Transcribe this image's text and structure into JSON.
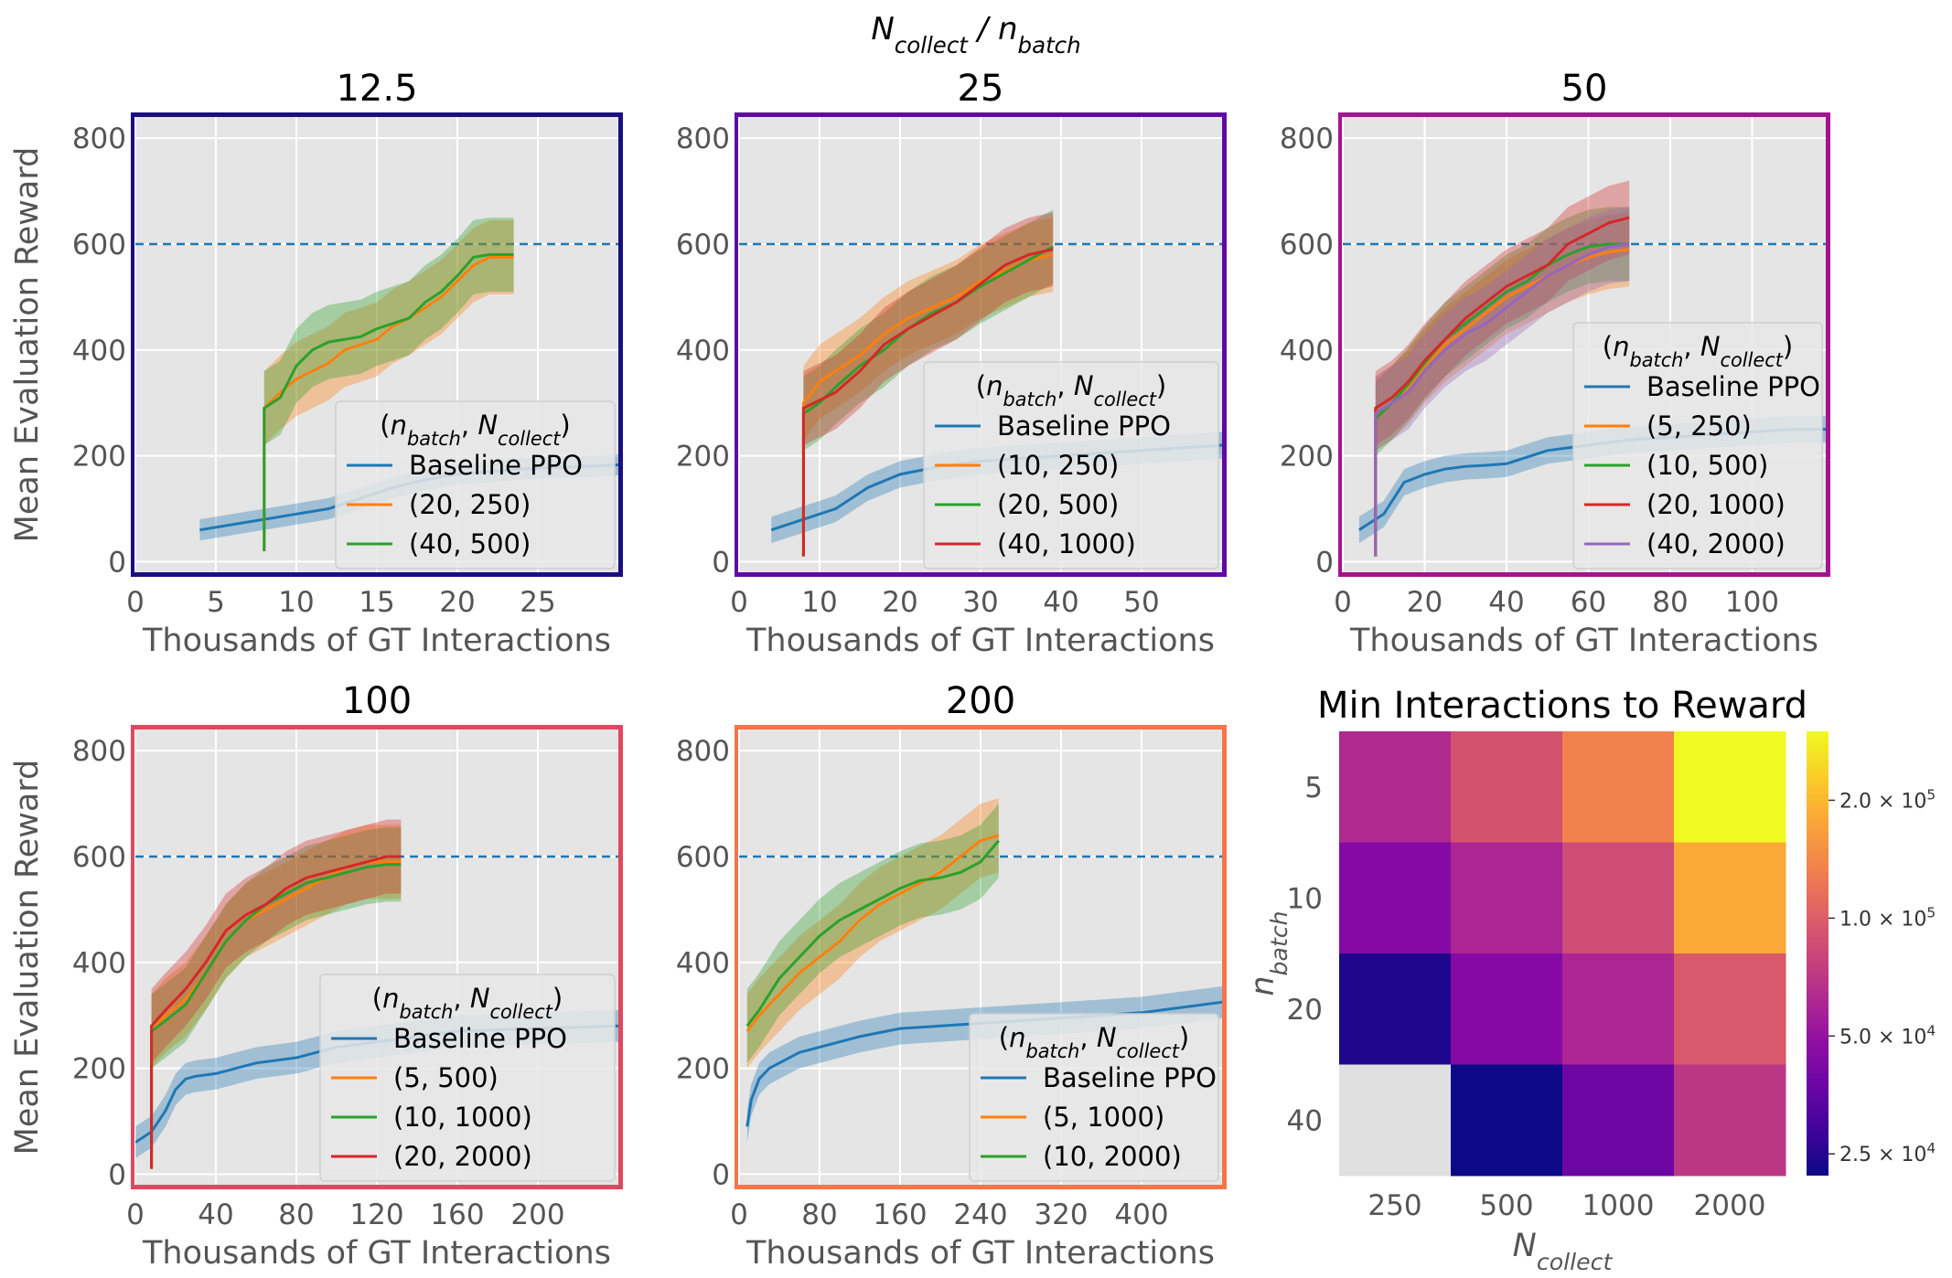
{
  "suptitle": "N_collect / n_batch",
  "chart_data": [
    {
      "type": "line",
      "title": "12.5",
      "frame_color": "#1b0f80",
      "xlabel": "Thousands of GT Interactions",
      "ylabel": "Mean Evaluation Reward",
      "xlim": [
        0,
        30
      ],
      "ylim": [
        -20,
        840
      ],
      "xticks": [
        0,
        5,
        10,
        15,
        20,
        25
      ],
      "yticks": [
        0,
        200,
        400,
        600,
        800
      ],
      "threshold": 600,
      "legend_title": "(n_batch, N_collect)",
      "legend_position": "lower-right",
      "series": [
        {
          "name": "Baseline PPO",
          "color": "#1f77b4",
          "x": [
            4,
            6,
            8,
            10,
            12,
            14,
            16,
            18,
            20,
            22,
            24,
            26,
            28,
            30
          ],
          "y": [
            60,
            70,
            80,
            90,
            100,
            120,
            140,
            155,
            165,
            170,
            175,
            178,
            180,
            183
          ],
          "band": 20
        },
        {
          "name": "(20, 250)",
          "color": "#ff7f0e",
          "x": [
            8,
            8,
            9,
            10,
            11,
            12,
            13,
            14,
            15,
            16,
            17,
            18,
            19,
            20,
            21,
            22,
            23.5
          ],
          "y": [
            20,
            290,
            320,
            345,
            360,
            375,
            400,
            410,
            420,
            445,
            460,
            480,
            500,
            530,
            560,
            575,
            575
          ],
          "band": 70
        },
        {
          "name": "(40, 500)",
          "color": "#2ca02c",
          "x": [
            8,
            8,
            9,
            10,
            11,
            12,
            13,
            14,
            15,
            16,
            17,
            18,
            19,
            20,
            21,
            22,
            23.5
          ],
          "y": [
            20,
            290,
            310,
            370,
            400,
            415,
            420,
            425,
            440,
            450,
            460,
            490,
            510,
            540,
            575,
            580,
            580
          ],
          "band": 70
        }
      ]
    },
    {
      "type": "line",
      "title": "25",
      "frame_color": "#5f0aa5",
      "xlabel": "Thousands of GT Interactions",
      "ylabel": "",
      "xlim": [
        0,
        60
      ],
      "ylim": [
        -20,
        840
      ],
      "xticks": [
        0,
        10,
        20,
        30,
        40,
        50
      ],
      "yticks": [
        0,
        200,
        400,
        600,
        800
      ],
      "threshold": 600,
      "legend_title": "(n_batch, N_collect)",
      "legend_position": "lower-right",
      "series": [
        {
          "name": "Baseline PPO",
          "color": "#1f77b4",
          "x": [
            4,
            8,
            12,
            16,
            20,
            25,
            30,
            35,
            40,
            45,
            50,
            55,
            60
          ],
          "y": [
            60,
            80,
            100,
            140,
            165,
            180,
            190,
            195,
            200,
            205,
            210,
            215,
            220
          ],
          "band": 25
        },
        {
          "name": "(10, 250)",
          "color": "#ff7f0e",
          "x": [
            8,
            8,
            10,
            12,
            15,
            18,
            21,
            24,
            27,
            30,
            33,
            36,
            39
          ],
          "y": [
            10,
            300,
            340,
            360,
            390,
            430,
            460,
            480,
            500,
            530,
            550,
            570,
            580
          ],
          "band": 70
        },
        {
          "name": "(20, 500)",
          "color": "#2ca02c",
          "x": [
            8,
            8,
            10,
            12,
            15,
            18,
            21,
            24,
            27,
            30,
            33,
            36,
            39
          ],
          "y": [
            10,
            280,
            300,
            330,
            370,
            400,
            440,
            470,
            490,
            520,
            545,
            570,
            595
          ],
          "band": 70
        },
        {
          "name": "(40, 1000)",
          "color": "#d62728",
          "x": [
            8,
            8,
            10,
            12,
            15,
            18,
            21,
            24,
            27,
            30,
            33,
            36,
            39
          ],
          "y": [
            10,
            290,
            305,
            320,
            360,
            410,
            440,
            465,
            490,
            525,
            560,
            580,
            590
          ],
          "band": 70
        }
      ]
    },
    {
      "type": "line",
      "title": "50",
      "frame_color": "#a3158e",
      "xlabel": "Thousands of GT Interactions",
      "ylabel": "",
      "xlim": [
        0,
        118
      ],
      "ylim": [
        -20,
        840
      ],
      "xticks": [
        0,
        20,
        40,
        60,
        80,
        100
      ],
      "yticks": [
        0,
        200,
        400,
        600,
        800
      ],
      "threshold": 600,
      "legend_title": "(n_batch, N_collect)",
      "legend_position": "lower-right",
      "series": [
        {
          "name": "Baseline PPO",
          "color": "#1f77b4",
          "x": [
            4,
            10,
            15,
            20,
            25,
            30,
            35,
            40,
            50,
            60,
            70,
            80,
            90,
            100,
            110,
            118
          ],
          "y": [
            60,
            90,
            150,
            165,
            175,
            180,
            182,
            185,
            210,
            220,
            230,
            235,
            240,
            245,
            250,
            250
          ],
          "band": 25
        },
        {
          "name": "(5, 250)",
          "color": "#ff7f0e",
          "x": [
            8,
            8,
            12,
            16,
            20,
            25,
            30,
            35,
            40,
            45,
            50,
            55,
            60,
            65,
            70
          ],
          "y": [
            10,
            280,
            300,
            330,
            370,
            410,
            440,
            470,
            500,
            520,
            540,
            560,
            575,
            585,
            590
          ],
          "band": 70
        },
        {
          "name": "(10, 500)",
          "color": "#2ca02c",
          "x": [
            8,
            8,
            12,
            16,
            20,
            25,
            30,
            35,
            40,
            45,
            50,
            55,
            60,
            65,
            70
          ],
          "y": [
            10,
            270,
            300,
            335,
            375,
            420,
            450,
            480,
            510,
            530,
            560,
            580,
            595,
            600,
            600
          ],
          "band": 70
        },
        {
          "name": "(20, 1000)",
          "color": "#d62728",
          "x": [
            8,
            8,
            12,
            16,
            20,
            25,
            30,
            35,
            40,
            45,
            50,
            55,
            60,
            65,
            70
          ],
          "y": [
            10,
            290,
            310,
            340,
            380,
            420,
            460,
            490,
            520,
            540,
            560,
            600,
            620,
            640,
            650
          ],
          "band": 70
        },
        {
          "name": "(40, 2000)",
          "color": "#9467bd",
          "x": [
            8,
            8,
            12,
            16,
            20,
            25,
            30,
            35,
            40,
            45,
            50,
            55,
            60,
            65,
            70
          ],
          "y": [
            10,
            280,
            300,
            320,
            360,
            400,
            430,
            450,
            480,
            510,
            540,
            560,
            580,
            595,
            600
          ],
          "band": 70
        }
      ]
    },
    {
      "type": "line",
      "title": "100",
      "frame_color": "#e0485f",
      "xlabel": "Thousands of GT Interactions",
      "ylabel": "Mean Evaluation Reward",
      "xlim": [
        0,
        240
      ],
      "ylim": [
        -20,
        840
      ],
      "xticks": [
        0,
        40,
        80,
        120,
        160,
        200
      ],
      "yticks": [
        0,
        200,
        400,
        600,
        800
      ],
      "threshold": 600,
      "legend_title": "(n_batch, N_collect)",
      "legend_position": "lower-right",
      "series": [
        {
          "name": "Baseline PPO",
          "color": "#1f77b4",
          "x": [
            0,
            8,
            15,
            20,
            25,
            30,
            40,
            50,
            60,
            80,
            100,
            120,
            140,
            160,
            200,
            240
          ],
          "y": [
            60,
            80,
            120,
            160,
            180,
            185,
            190,
            200,
            210,
            220,
            240,
            250,
            260,
            270,
            275,
            280
          ],
          "band": 30
        },
        {
          "name": "(5, 500)",
          "color": "#ff7f0e",
          "x": [
            8,
            8,
            15,
            25,
            35,
            45,
            55,
            65,
            75,
            85,
            95,
            105,
            115,
            125,
            132
          ],
          "y": [
            10,
            270,
            300,
            330,
            380,
            440,
            480,
            500,
            520,
            540,
            560,
            580,
            590,
            590,
            590
          ],
          "band": 70
        },
        {
          "name": "(10, 1000)",
          "color": "#2ca02c",
          "x": [
            8,
            8,
            15,
            25,
            35,
            45,
            55,
            65,
            75,
            85,
            95,
            105,
            115,
            125,
            132
          ],
          "y": [
            10,
            270,
            290,
            320,
            380,
            440,
            480,
            510,
            530,
            550,
            560,
            570,
            580,
            585,
            585
          ],
          "band": 70
        },
        {
          "name": "(20, 2000)",
          "color": "#d62728",
          "x": [
            8,
            8,
            15,
            25,
            35,
            45,
            55,
            65,
            75,
            85,
            95,
            105,
            115,
            125,
            132
          ],
          "y": [
            10,
            280,
            310,
            350,
            400,
            460,
            490,
            510,
            540,
            560,
            570,
            580,
            590,
            600,
            600
          ],
          "band": 70
        }
      ]
    },
    {
      "type": "line",
      "title": "200",
      "frame_color": "#f7734a",
      "xlabel": "Thousands of GT Interactions",
      "ylabel": "",
      "xlim": [
        0,
        480
      ],
      "ylim": [
        -20,
        840
      ],
      "xticks": [
        0,
        80,
        160,
        240,
        320,
        400
      ],
      "yticks": [
        0,
        200,
        400,
        600,
        800
      ],
      "threshold": 600,
      "legend_title": "(n_batch, N_collect)",
      "legend_position": "lower-right",
      "series": [
        {
          "name": "Baseline PPO",
          "color": "#1f77b4",
          "x": [
            8,
            12,
            20,
            30,
            40,
            60,
            80,
            100,
            120,
            160,
            200,
            240,
            280,
            320,
            360,
            400,
            440,
            480
          ],
          "y": [
            90,
            140,
            180,
            200,
            210,
            230,
            240,
            250,
            260,
            275,
            280,
            285,
            290,
            295,
            300,
            305,
            315,
            325
          ],
          "band": 30
        },
        {
          "name": "(5, 1000)",
          "color": "#ff7f0e",
          "x": [
            8,
            20,
            40,
            60,
            80,
            100,
            120,
            140,
            160,
            180,
            200,
            220,
            240,
            258
          ],
          "y": [
            270,
            300,
            340,
            380,
            410,
            440,
            480,
            510,
            530,
            550,
            570,
            600,
            630,
            640
          ],
          "band": 70
        },
        {
          "name": "(10, 2000)",
          "color": "#2ca02c",
          "x": [
            8,
            20,
            40,
            60,
            80,
            100,
            120,
            140,
            160,
            180,
            200,
            220,
            240,
            258
          ],
          "y": [
            280,
            310,
            370,
            410,
            450,
            480,
            500,
            520,
            540,
            555,
            560,
            570,
            590,
            630
          ],
          "band": 70
        }
      ]
    },
    {
      "type": "heatmap",
      "title": "Min Interactions to Reward",
      "xlabel": "N_collect",
      "ylabel": "n_batch",
      "x_categories": [
        "250",
        "500",
        "1000",
        "2000"
      ],
      "y_categories": [
        "5",
        "10",
        "20",
        "40"
      ],
      "values": [
        [
          62000,
          90000,
          135000,
          300000
        ],
        [
          45000,
          60000,
          85000,
          180000
        ],
        [
          24000,
          45000,
          60000,
          95000
        ],
        [
          null,
          22000,
          38000,
          70000
        ]
      ],
      "missing_color": "#e0e0e0",
      "colorbar": {
        "scale": "log",
        "range": [
          22000,
          300000
        ],
        "ticks": [
          {
            "value": 25000,
            "label": "2.5 × 10^4"
          },
          {
            "value": 50000,
            "label": "5.0 × 10^4"
          },
          {
            "value": 100000,
            "label": "1.0 × 10^5"
          },
          {
            "value": 200000,
            "label": "2.0 × 10^5"
          }
        ]
      }
    }
  ]
}
